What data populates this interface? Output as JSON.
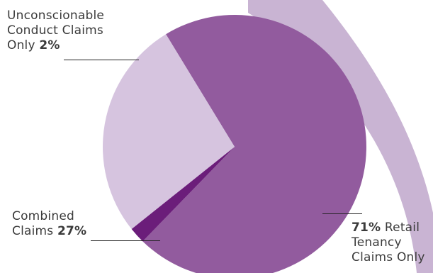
{
  "colors": {
    "retail": "#925b9e",
    "combined": "#d6c4df",
    "unconscionable": "#6b1d7a",
    "ribbon": "#c9b4d3",
    "text": "#3b3b3b"
  },
  "chart_data": {
    "type": "pie",
    "title": "",
    "slices": [
      {
        "name": "Retail Tenancy Claims Only",
        "value": 71
      },
      {
        "name": "Unconscionable Conduct Claims Only",
        "value": 2
      },
      {
        "name": "Combined Claims",
        "value": 27
      }
    ],
    "labels": {
      "unconscionable": {
        "line1": "Unconscionable",
        "line2": "Conduct Claims",
        "line3_text": "Only",
        "pct": "2%"
      },
      "combined": {
        "line1": "Combined",
        "line2_text": "Claims",
        "pct": "27%"
      },
      "retail": {
        "pct": "71%",
        "line1_text": "Retail",
        "line2": "Tenancy",
        "line3": "Claims Only"
      }
    },
    "legend": "none",
    "grid": false
  }
}
